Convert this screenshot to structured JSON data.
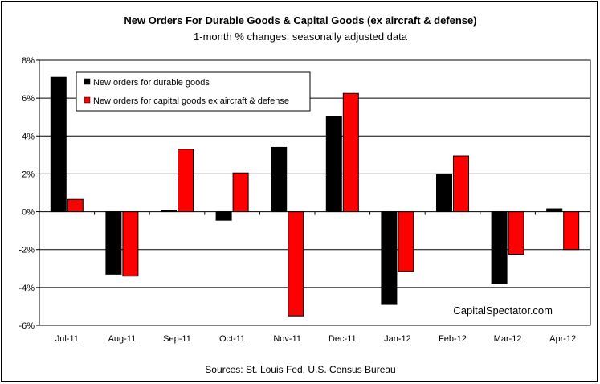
{
  "chart_data": {
    "type": "bar",
    "title": "New Orders For Durable Goods & Capital Goods (ex aircraft & defense)",
    "subtitle": "1-month % changes, seasonally adjusted data",
    "categories": [
      "Jul-11",
      "Aug-11",
      "Sep-11",
      "Oct-11",
      "Nov-11",
      "Dec-11",
      "Jan-12",
      "Feb-12",
      "Mar-12",
      "Apr-12"
    ],
    "series": [
      {
        "name": "New orders for durable goods",
        "color": "#000000",
        "values": [
          7.1,
          -3.3,
          0.05,
          -0.45,
          3.4,
          5.05,
          -4.9,
          2.0,
          -3.8,
          0.15
        ]
      },
      {
        "name": "New orders for capital goods ex aircraft & defense",
        "color": "#ff0000",
        "values": [
          0.65,
          -3.4,
          3.3,
          2.05,
          -5.5,
          6.25,
          -3.15,
          2.95,
          -2.25,
          -2.0
        ]
      }
    ],
    "y_ticks": [
      "8%",
      "6%",
      "4%",
      "2%",
      "0%",
      "-2%",
      "-4%",
      "-6%"
    ],
    "ylim": [
      -6,
      8
    ],
    "y_step": 2,
    "grid": true,
    "legend_position": "top-left",
    "annotation": "CapitalSpectator.com",
    "source": "Sources: St. Louis Fed, U.S. Census Bureau",
    "xlabel": "",
    "ylabel": ""
  }
}
